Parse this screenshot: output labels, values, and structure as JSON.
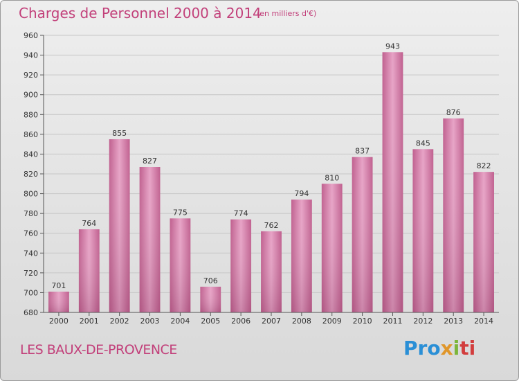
{
  "chart_data": {
    "type": "bar",
    "title": "Charges de Personnel 2000 à 2014",
    "subtitle": "(en milliers d'€)",
    "categories": [
      "2000",
      "2001",
      "2002",
      "2003",
      "2004",
      "2005",
      "2006",
      "2007",
      "2008",
      "2009",
      "2010",
      "2011",
      "2012",
      "2013",
      "2014"
    ],
    "values": [
      701,
      764,
      855,
      827,
      775,
      706,
      774,
      762,
      794,
      810,
      837,
      943,
      845,
      876,
      822
    ],
    "ylim": [
      680,
      960
    ],
    "yticks": [
      680,
      700,
      720,
      740,
      760,
      780,
      800,
      820,
      840,
      860,
      880,
      900,
      920,
      940,
      960
    ],
    "grid": true,
    "bar_color": "#d57aa8"
  },
  "footer": {
    "commune": "LES BAUX-DE-PROVENCE",
    "logo": [
      "Pro",
      "x",
      "i",
      "ti"
    ]
  }
}
